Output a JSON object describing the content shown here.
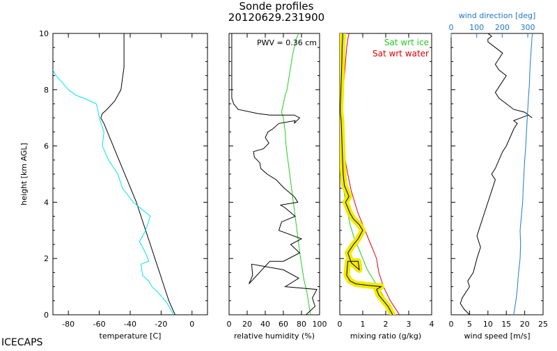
{
  "title": "Sonde profiles",
  "subtitle": "20120629.231900",
  "station": "ICECAPS",
  "colors": {
    "black": "#000000",
    "cyan": "#00e5ee",
    "green": "#22cc22",
    "red": "#dd0000",
    "yellow": "#f2ea00",
    "blue": "#1e78c8"
  },
  "chart_data": [
    {
      "type": "line",
      "id": "temperature",
      "xlabel": "temperature [C]",
      "ylabel": "height [km AGL]",
      "xlim": [
        -90,
        10
      ],
      "ylim": [
        0,
        10
      ],
      "xticks": [
        -80,
        -60,
        -40,
        -20,
        0
      ],
      "yticks": [
        0,
        2,
        4,
        6,
        8,
        10
      ],
      "series": [
        {
          "role": "temperature",
          "color": "#000000",
          "x": [
            -11,
            -15,
            -18,
            -21,
            -24,
            -27,
            -30,
            -33,
            -36,
            -39,
            -42,
            -45,
            -48,
            -51,
            -54,
            -57,
            -59,
            -58,
            -55,
            -50,
            -46,
            -45,
            -44,
            -44,
            -44,
            -44,
            -44
          ],
          "y": [
            0,
            0.5,
            1,
            1.5,
            2,
            2.5,
            3,
            3.5,
            4,
            4.4,
            4.8,
            5.2,
            5.6,
            6,
            6.4,
            6.8,
            7.0,
            7.15,
            7.3,
            7.6,
            8,
            8.4,
            8.8,
            9.2,
            9.6,
            9.8,
            10
          ]
        },
        {
          "role": "dewpoint",
          "color": "#00e5ee",
          "x": [
            -12,
            -16,
            -22,
            -26,
            -28,
            -32,
            -33,
            -28,
            -30,
            -34,
            -30,
            -27,
            -38,
            -45,
            -48,
            -54,
            -58,
            -57,
            -60,
            -61,
            -62,
            -66,
            -70,
            -75,
            -80,
            -83,
            -88,
            -91,
            -93,
            -93,
            -93,
            -94
          ],
          "y": [
            0,
            0.4,
            0.8,
            1.0,
            1.2,
            1.4,
            1.8,
            1.9,
            2.2,
            2.6,
            3.0,
            3.5,
            4.0,
            4.5,
            5.0,
            5.5,
            6.0,
            6.5,
            7.0,
            7.3,
            7.5,
            7.6,
            7.7,
            7.8,
            8.0,
            8.2,
            8.5,
            8.8,
            9.2,
            9.5,
            9.8,
            10
          ]
        }
      ]
    },
    {
      "type": "line",
      "id": "relative_humidity",
      "xlabel": "relative humidity (%)",
      "annotation": "PWV = 0.36 cm",
      "xlim": [
        0,
        100
      ],
      "ylim": [
        0,
        10
      ],
      "xticks": [
        0,
        20,
        40,
        60,
        80,
        100
      ],
      "yticks": [
        0,
        2,
        4,
        6,
        8,
        10
      ],
      "series": [
        {
          "role": "rh_ice",
          "color": "#22cc22",
          "x": [
            90,
            88,
            86,
            83,
            81,
            79,
            77,
            75,
            73,
            71,
            69,
            67,
            65,
            63,
            62,
            60,
            58,
            60,
            62,
            64,
            66,
            68,
            70,
            72,
            74,
            77
          ],
          "y": [
            0,
            0.4,
            0.8,
            1.2,
            1.6,
            2,
            2.5,
            3,
            3.5,
            4,
            4.5,
            5,
            5.5,
            6,
            6.5,
            7,
            7.2,
            7.5,
            7.8,
            8,
            8.4,
            8.8,
            9.2,
            9.5,
            9.8,
            10
          ]
        },
        {
          "role": "rh_water",
          "color": "#000000",
          "x": [
            85,
            95,
            92,
            97,
            62,
            77,
            60,
            25,
            26,
            22,
            45,
            60,
            78,
            68,
            80,
            55,
            58,
            73,
            62,
            57,
            76,
            72,
            61,
            52,
            42,
            35,
            34,
            28,
            27,
            38,
            44,
            40,
            43,
            48,
            55,
            73,
            72,
            75,
            78,
            72,
            45,
            32,
            10,
            5,
            3,
            3,
            3,
            3,
            3
          ],
          "y": [
            0,
            0.3,
            0.6,
            0.9,
            1.0,
            1.3,
            1.6,
            1.8,
            1.4,
            1.1,
            1.9,
            1.9,
            2.2,
            2.5,
            2.7,
            3.0,
            3.3,
            3.5,
            3.8,
            3.9,
            4.0,
            4.2,
            4.5,
            4.8,
            5.0,
            5.2,
            5.4,
            5.6,
            5.8,
            5.9,
            6.1,
            6.3,
            6.5,
            6.6,
            6.8,
            6.9,
            6.8,
            6.9,
            7.0,
            7.1,
            7.1,
            7.15,
            7.3,
            7.5,
            7.7,
            8.0,
            8.5,
            9.0,
            10
          ]
        }
      ]
    },
    {
      "type": "line",
      "id": "mixing_ratio",
      "xlabel": "mixing ratio (g/kg)",
      "xlim": [
        0,
        4
      ],
      "ylim": [
        0,
        10
      ],
      "xticks": [
        0,
        1,
        2,
        3,
        4
      ],
      "yticks": [
        0,
        2,
        4,
        6,
        8,
        10
      ],
      "legend": [
        {
          "label": "Sat wrt ice",
          "color": "#22cc22"
        },
        {
          "label": "Sat wrt water",
          "color": "#dd0000"
        }
      ],
      "legend_position": "top-right",
      "series": [
        {
          "role": "sat_ice",
          "color": "#22cc22",
          "x": [
            2.35,
            2.1,
            1.8,
            1.5,
            1.2,
            1.0,
            0.8,
            0.6,
            0.45,
            0.35,
            0.25,
            0.18,
            0.12,
            0.08,
            0.05,
            0.03,
            0.03,
            0.06,
            0.08,
            0.1,
            0.12,
            0.14
          ],
          "y": [
            0,
            0.4,
            0.8,
            1.2,
            1.6,
            2,
            2.4,
            2.8,
            3.2,
            3.6,
            4,
            4.4,
            5,
            5.5,
            6,
            7,
            7.5,
            8,
            8.5,
            9,
            9.5,
            10
          ]
        },
        {
          "role": "sat_water",
          "color": "#dd0000",
          "x": [
            2.6,
            2.2,
            1.9,
            1.7,
            1.6,
            1.45,
            1.3,
            1.1,
            0.95,
            0.8,
            0.65,
            0.5,
            0.4,
            0.3,
            0.22,
            0.16,
            0.1,
            0.06,
            0.04,
            0.1,
            0.15,
            0.2,
            0.25,
            0.3,
            0.35,
            0.4
          ],
          "y": [
            0,
            0.5,
            1,
            1.5,
            2,
            2.3,
            2.6,
            3,
            3.3,
            3.6,
            4,
            4.4,
            4.8,
            5.2,
            5.6,
            6,
            6.5,
            7,
            7.2,
            7.6,
            8,
            8.5,
            9,
            9.5,
            9.8,
            10
          ]
        },
        {
          "role": "mixing_ratio",
          "color": "#000000",
          "highlight": "#f2ea00",
          "x": [
            2.3,
            2.1,
            1.9,
            1.7,
            1.6,
            1.8,
            1.2,
            0.7,
            0.45,
            0.3,
            0.35,
            0.8,
            0.85,
            0.5,
            0.35,
            0.6,
            0.8,
            1.0,
            0.85,
            0.6,
            0.45,
            0.35,
            0.25,
            0.4,
            0.3,
            0.2,
            0.15,
            0.12,
            0.1,
            0.08,
            0.06,
            0.05,
            0.03,
            0.02,
            0.02,
            0.03,
            0.05,
            0.07,
            0.09,
            0.1,
            0.12,
            0.13
          ],
          "y": [
            0,
            0.3,
            0.5,
            0.7,
            0.9,
            1.0,
            1.05,
            1.1,
            1.2,
            1.4,
            1.9,
            1.9,
            1.6,
            1.85,
            2.2,
            2.5,
            2.7,
            3.0,
            3.2,
            3.4,
            3.6,
            3.8,
            4.0,
            4.2,
            4.4,
            4.6,
            5.0,
            5.5,
            6.0,
            6.5,
            6.9,
            7.0,
            7.1,
            7.2,
            7.4,
            7.6,
            8.0,
            8.5,
            9.0,
            9.5,
            9.8,
            10
          ]
        }
      ]
    },
    {
      "type": "line",
      "id": "wind",
      "xlabel": "wind speed [m/s]",
      "x2label": "wind direction [deg]",
      "xlim": [
        0,
        25
      ],
      "x2lim": [
        0,
        360
      ],
      "ylim": [
        0,
        10
      ],
      "xticks": [
        0,
        5,
        10,
        15,
        20,
        25
      ],
      "x2ticks": [
        0,
        100,
        200,
        300
      ],
      "yticks": [
        0,
        2,
        4,
        6,
        8,
        10
      ],
      "series": [
        {
          "role": "wind_speed",
          "color": "#000000",
          "axis": "bottom",
          "x": [
            5,
            3.5,
            2.5,
            3,
            4,
            5,
            4.5,
            6,
            7,
            8,
            7,
            8,
            9,
            10,
            11,
            12,
            11,
            12,
            13,
            14,
            15,
            16,
            17,
            18,
            17,
            19,
            21,
            22,
            20,
            17,
            15,
            13,
            12,
            13,
            14,
            15,
            13,
            12,
            13,
            14,
            12,
            11,
            10,
            10,
            11,
            10
          ],
          "y": [
            0,
            0.2,
            0.4,
            0.6,
            0.8,
            1,
            1.2,
            1.5,
            2,
            2.4,
            2.8,
            3.2,
            3.6,
            4,
            4.4,
            4.8,
            5,
            5.2,
            5.5,
            5.8,
            6,
            6.3,
            6.6,
            6.8,
            6.9,
            7,
            7.1,
            7.0,
            7.2,
            7.3,
            7.5,
            7.7,
            7.9,
            8.1,
            8.3,
            8.5,
            8.7,
            8.9,
            9.1,
            9.3,
            9.5,
            9.6,
            9.7,
            9.8,
            9.9,
            10
          ]
        },
        {
          "role": "wind_direction",
          "color": "#1e78c8",
          "axis": "top",
          "x": [
            245,
            250,
            255,
            260,
            262,
            265,
            270,
            272,
            270,
            275,
            280,
            282,
            285,
            288,
            292,
            295,
            298,
            300,
            302,
            305,
            307,
            308,
            310,
            312,
            313,
            315,
            316,
            317,
            318,
            318
          ],
          "y": [
            0,
            0.3,
            0.6,
            1,
            1.3,
            1.6,
            2,
            2.5,
            3,
            3.5,
            4,
            4.5,
            5,
            5.5,
            6,
            6.5,
            7,
            7.3,
            7.6,
            8,
            8.3,
            8.6,
            9,
            9.2,
            9.4,
            9.6,
            9.8,
            9.9,
            9.95,
            10
          ]
        }
      ]
    }
  ]
}
